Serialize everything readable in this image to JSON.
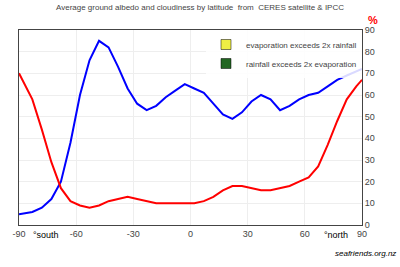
{
  "chart_data": {
    "type": "line",
    "title": "Average ground albedo and cloudiness by latitude  from  CERES satellite & IPCC",
    "x": [
      -90,
      -83,
      -78,
      -73,
      -68,
      -63,
      -58,
      -53,
      -48,
      -43,
      -38,
      -33,
      -28,
      -23,
      -18,
      -13,
      -8,
      -3,
      2,
      7,
      12,
      17,
      22,
      27,
      32,
      37,
      42,
      47,
      52,
      57,
      62,
      67,
      72,
      77,
      82,
      87,
      90
    ],
    "series": [
      {
        "color": "blue",
        "values": [
          5,
          6,
          8,
          12,
          20,
          38,
          60,
          76,
          85,
          82,
          73,
          63,
          56,
          53,
          55,
          59,
          62,
          65,
          63,
          61,
          56,
          51,
          49,
          52,
          57,
          60,
          58,
          53,
          55,
          58,
          60,
          61,
          64,
          67,
          69,
          71,
          72
        ]
      },
      {
        "color": "red",
        "values": [
          70,
          58,
          44,
          29,
          17,
          11,
          9,
          8,
          9,
          11,
          12,
          13,
          12,
          11,
          10,
          10,
          10,
          10,
          10,
          11,
          13,
          16,
          18,
          18,
          17,
          16,
          16,
          17,
          18,
          20,
          22,
          27,
          37,
          48,
          58,
          64,
          67
        ]
      },
      {
        "name": "evaporation exceeds 2x rainfall",
        "color": "#eeee44",
        "type": "patch"
      },
      {
        "name": "rainfall exceeds 2x evaporation",
        "color": "#226622",
        "type": "patch"
      }
    ],
    "xlim": [
      -90,
      90
    ],
    "xticks": [
      -90,
      -60,
      -30,
      0,
      30,
      60,
      90
    ],
    "ylim": [
      0,
      90
    ],
    "yticks": [
      0,
      10,
      20,
      30,
      40,
      50,
      60,
      70,
      80,
      90
    ],
    "grid": true,
    "legend": "top right",
    "annotations": [
      {
        "text": "°south"
      },
      {
        "text": "°north"
      },
      {
        "text": "%",
        "color": "red"
      },
      {
        "text": "seafriends.org.nz"
      }
    ]
  }
}
